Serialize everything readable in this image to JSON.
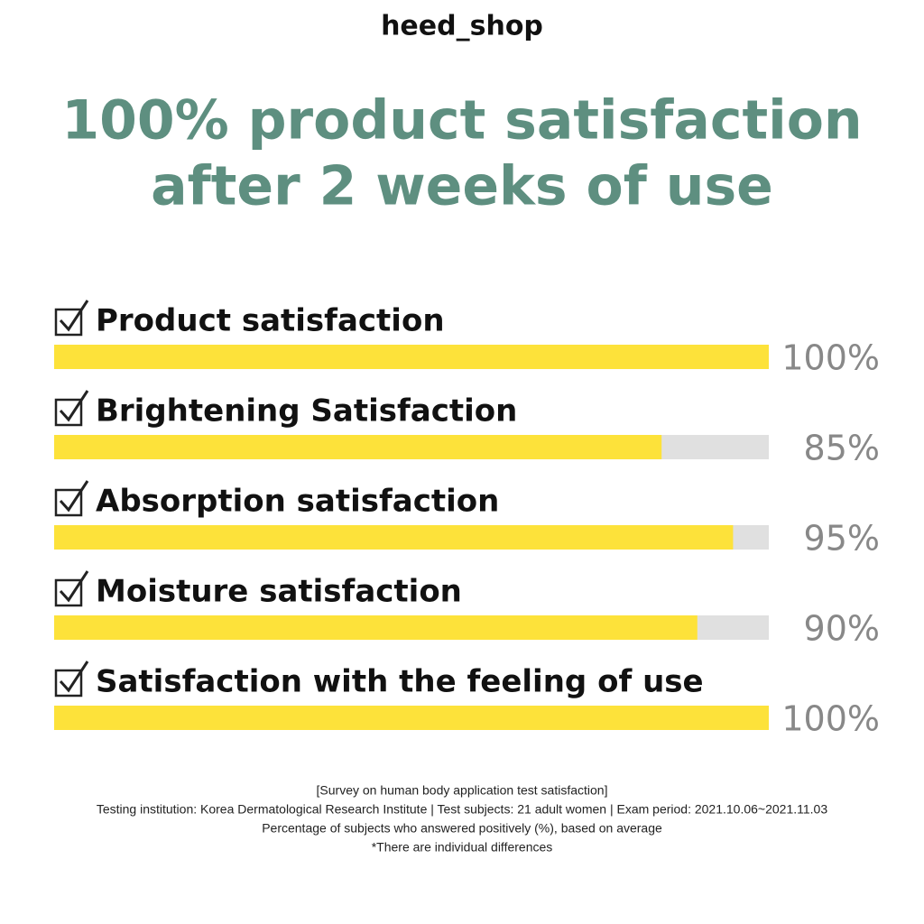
{
  "brand": "heed_shop",
  "chart_data": {
    "type": "bar",
    "orientation": "horizontal",
    "title": [
      "100% product satisfaction",
      "after 2 weeks of use"
    ],
    "categories": [
      "Product satisfaction",
      "Brightening Satisfaction",
      "Absorption satisfaction",
      "Moisture satisfaction",
      "Satisfaction with the feeling of use"
    ],
    "values": [
      100,
      85,
      95,
      90,
      100
    ],
    "value_labels": [
      "100%",
      "85%",
      "95%",
      "90%",
      "100%"
    ],
    "color": "#fde23a",
    "track_color": "#e0e0e0",
    "xlim": [
      0,
      100
    ]
  },
  "footnotes": [
    "[Survey on human body application test satisfaction]",
    "Testing institution: Korea Dermatological Research Institute | Test subjects: 21 adult women | Exam period: 2021.10.06~2021.11.03",
    "Percentage of subjects who answered positively (%), based on average",
    "*There are individual differences"
  ]
}
